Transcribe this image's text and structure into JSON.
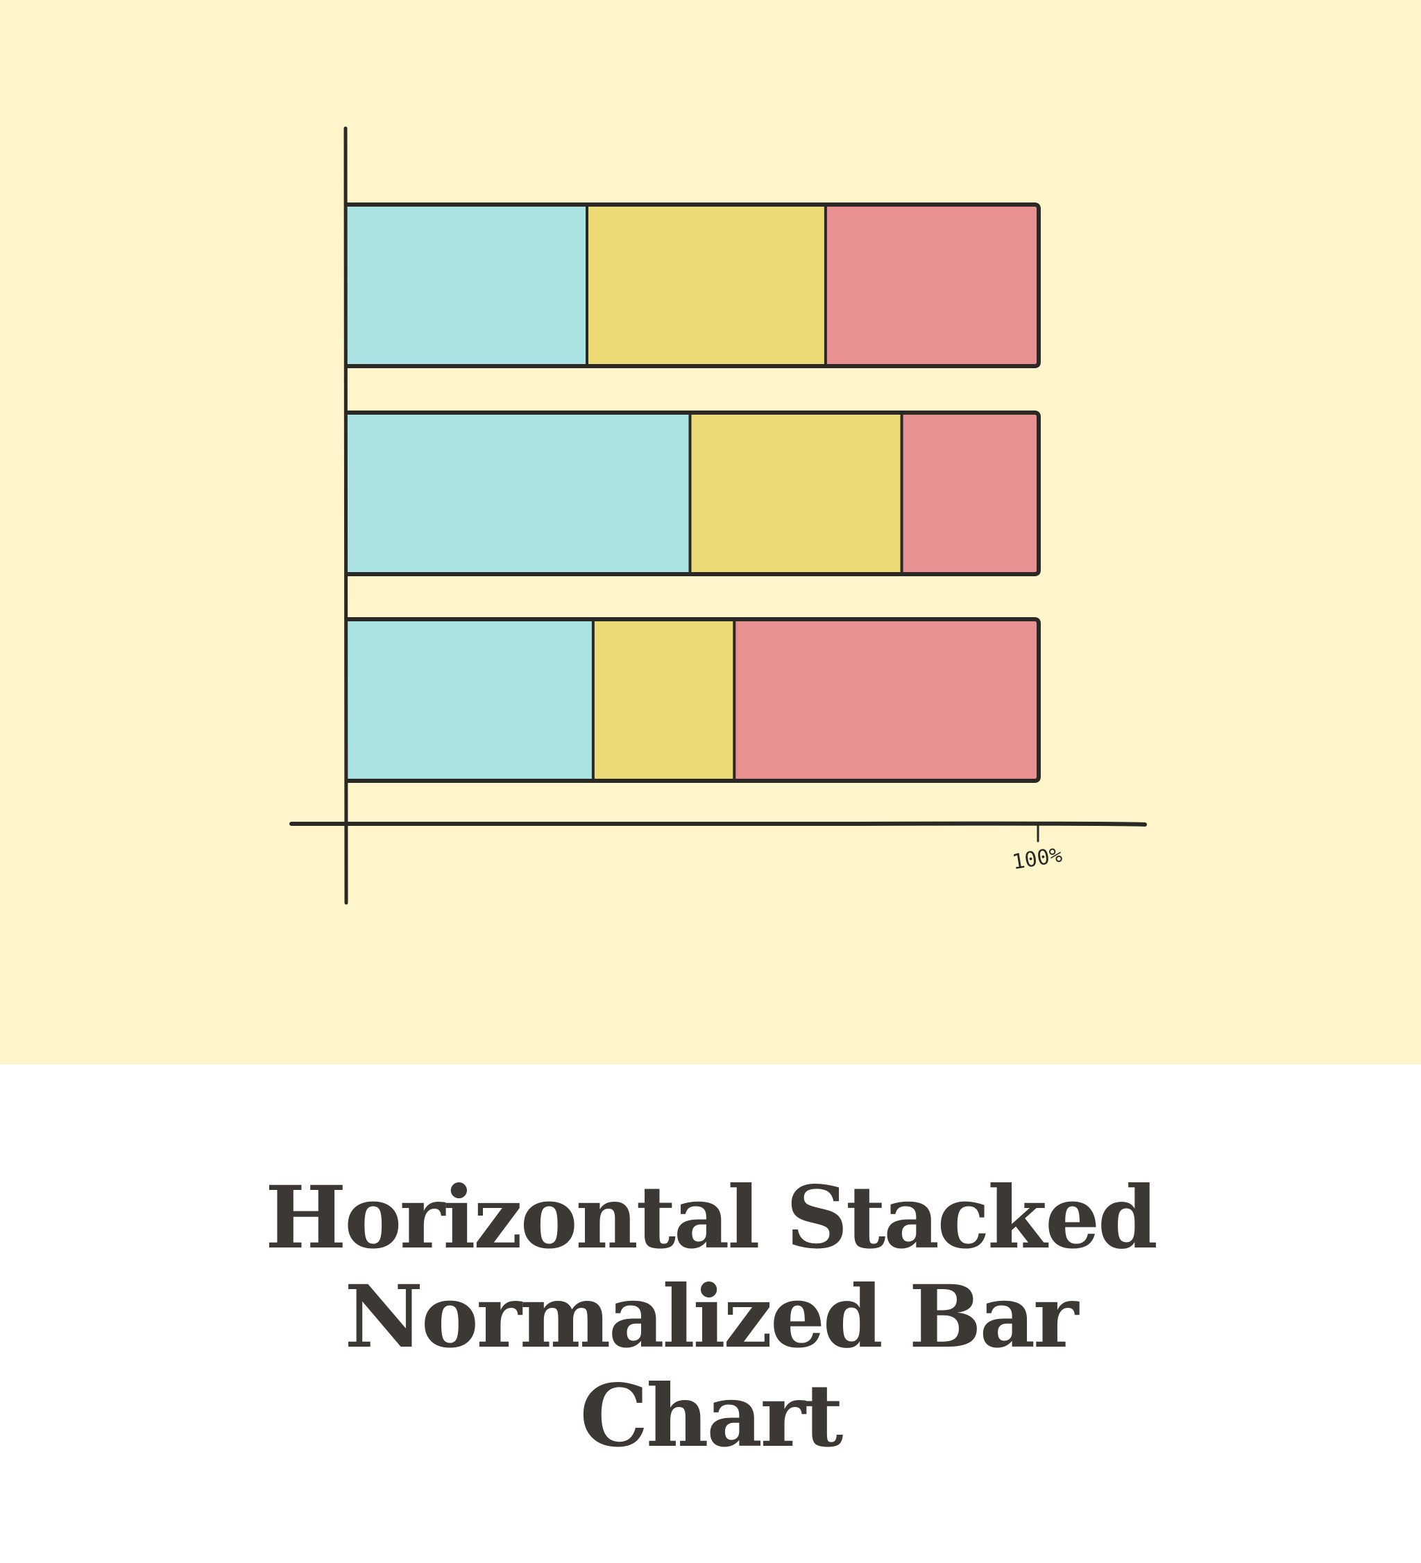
{
  "caption": {
    "title": "Horizontal Stacked Normalized Bar Chart"
  },
  "colors": {
    "background": "#fef5cb",
    "outline": "#2b2926",
    "caption_text": "#3c3935",
    "segment_colors": [
      "#aae3e2",
      "#ebda75",
      "#e79192"
    ]
  },
  "chart_data": {
    "type": "bar",
    "orientation": "horizontal",
    "stacked": true,
    "normalized": true,
    "title": "",
    "xlabel": "",
    "ylabel": "",
    "xlim": [
      0,
      100
    ],
    "x_ticks": [
      "100%"
    ],
    "grid": false,
    "legend": "none",
    "categories": [
      "",
      "",
      ""
    ],
    "series": [
      {
        "values": [
          34.7,
          49.6,
          35.6
        ]
      },
      {
        "values": [
          34.5,
          30.6,
          20.4
        ]
      },
      {
        "values": [
          30.8,
          19.8,
          44.0
        ]
      }
    ]
  }
}
